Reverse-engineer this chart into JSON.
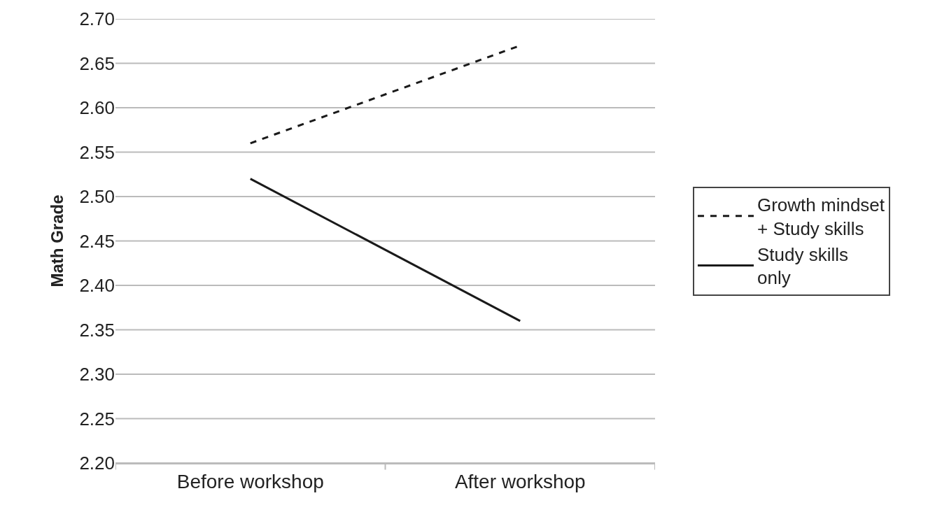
{
  "chart_data": {
    "type": "line",
    "ylabel": "Math Grade",
    "categories": [
      "Before workshop",
      "After workshop"
    ],
    "series": [
      {
        "name": "Growth mindset + Study skills",
        "color": "#1a1a1a",
        "values": [
          2.56,
          2.67
        ],
        "line_style": "dashed"
      },
      {
        "name": "Study skills only",
        "color": "#1a1a1a",
        "values": [
          2.52,
          2.36
        ],
        "line_style": "solid"
      }
    ],
    "ylim": [
      2.2,
      2.7
    ],
    "yticks": [
      {
        "value": 2.2,
        "label": "2.20"
      },
      2.25,
      {
        "value": 2.3,
        "label": "2.30"
      },
      2.35,
      {
        "value": 2.4,
        "label": "2.40"
      },
      2.45,
      {
        "value": 2.5,
        "label": "2.50"
      },
      2.55,
      {
        "value": 2.6,
        "label": "2.60"
      },
      2.65,
      {
        "value": 2.7,
        "label": "2.70"
      }
    ],
    "grid": "y",
    "legend": "right",
    "marker": "none"
  }
}
